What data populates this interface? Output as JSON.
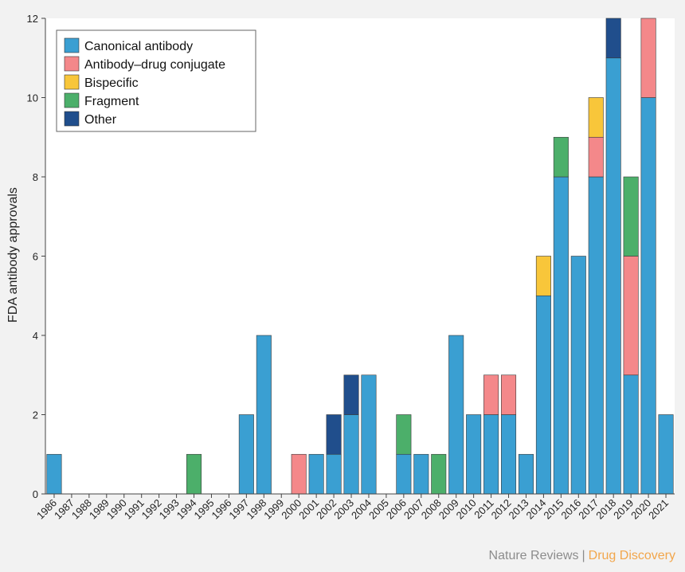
{
  "chart_data": {
    "type": "bar",
    "stacked": true,
    "ylabel": "FDA antibody approvals",
    "xlabel": "",
    "ylim": [
      0,
      12
    ],
    "yticks": [
      0,
      2,
      4,
      6,
      8,
      10,
      12
    ],
    "grid": false,
    "legend_position": "top-left",
    "categories": [
      "1986",
      "1987",
      "1988",
      "1989",
      "1990",
      "1991",
      "1992",
      "1993",
      "1994",
      "1995",
      "1996",
      "1997",
      "1998",
      "1999",
      "2000",
      "2001",
      "2002",
      "2003",
      "2004",
      "2005",
      "2006",
      "2007",
      "2008",
      "2009",
      "2010",
      "2011",
      "2012",
      "2013",
      "2014",
      "2015",
      "2016",
      "2017",
      "2018",
      "2019",
      "2020",
      "2021"
    ],
    "series": [
      {
        "name": "Canonical antibody",
        "color": "#3a9fd2",
        "values": [
          1,
          0,
          0,
          0,
          0,
          0,
          0,
          0,
          0,
          0,
          0,
          2,
          4,
          0,
          0,
          1,
          1,
          2,
          3,
          0,
          1,
          1,
          0,
          4,
          2,
          2,
          2,
          1,
          5,
          8,
          6,
          8,
          11,
          3,
          10,
          2
        ]
      },
      {
        "name": "Antibody–drug conjugate",
        "color": "#f4888a",
        "values": [
          0,
          0,
          0,
          0,
          0,
          0,
          0,
          0,
          0,
          0,
          0,
          0,
          0,
          0,
          1,
          0,
          0,
          0,
          0,
          0,
          0,
          0,
          0,
          0,
          0,
          1,
          1,
          0,
          0,
          0,
          0,
          1,
          0,
          3,
          2,
          0
        ]
      },
      {
        "name": "Bispecific",
        "color": "#f8c63a",
        "values": [
          0,
          0,
          0,
          0,
          0,
          0,
          0,
          0,
          0,
          0,
          0,
          0,
          0,
          0,
          0,
          0,
          0,
          0,
          0,
          0,
          0,
          0,
          0,
          0,
          0,
          0,
          0,
          0,
          1,
          0,
          0,
          1,
          0,
          0,
          0,
          0
        ]
      },
      {
        "name": "Fragment",
        "color": "#4caf6a",
        "values": [
          0,
          0,
          0,
          0,
          0,
          0,
          0,
          0,
          1,
          0,
          0,
          0,
          0,
          0,
          0,
          0,
          0,
          0,
          0,
          0,
          1,
          0,
          1,
          0,
          0,
          0,
          0,
          0,
          0,
          1,
          0,
          0,
          0,
          2,
          0,
          0
        ]
      },
      {
        "name": "Other",
        "color": "#204e8c",
        "values": [
          0,
          0,
          0,
          0,
          0,
          0,
          0,
          0,
          0,
          0,
          0,
          0,
          0,
          0,
          0,
          0,
          1,
          1,
          0,
          0,
          0,
          0,
          0,
          0,
          0,
          0,
          0,
          0,
          0,
          0,
          0,
          0,
          1,
          0,
          0,
          0
        ]
      }
    ]
  },
  "credit": {
    "publisher": "Nature Reviews",
    "separator": "|",
    "journal": "Drug Discovery"
  }
}
